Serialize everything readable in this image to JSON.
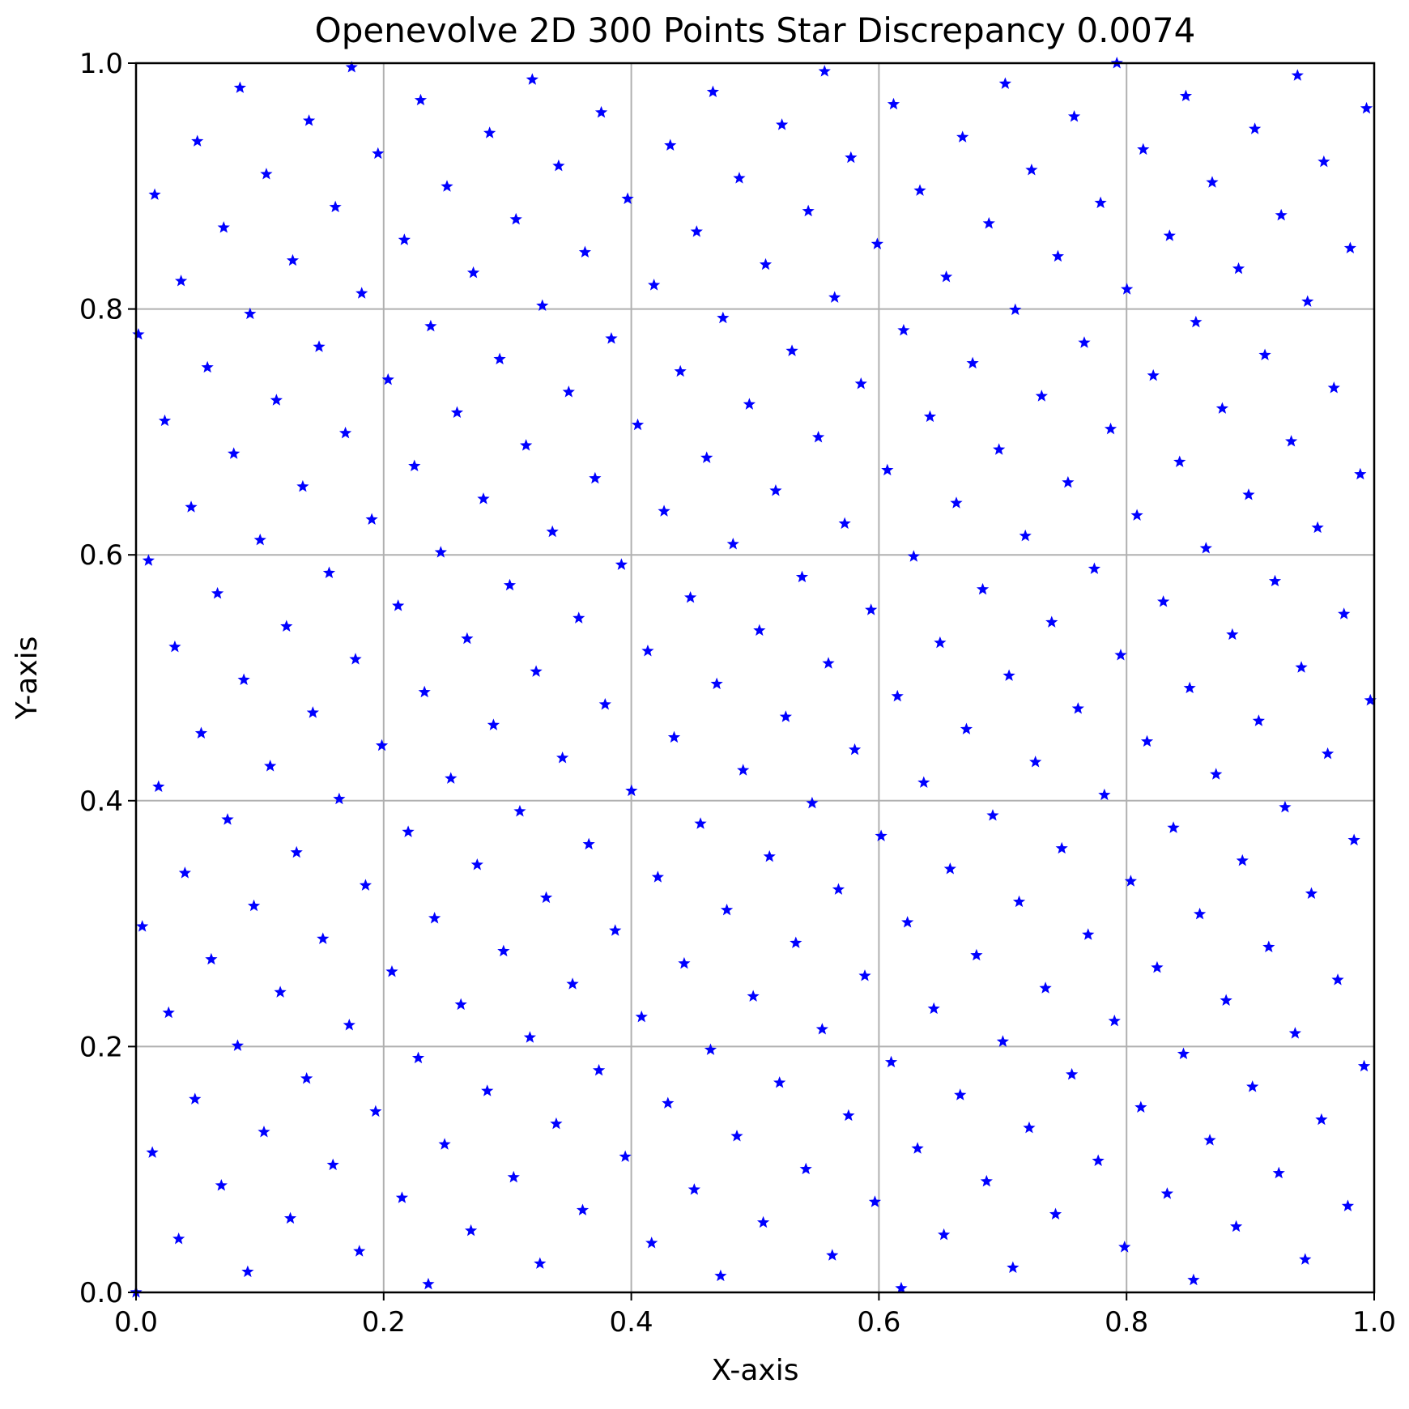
{
  "chart_data": {
    "type": "scatter",
    "title": "Openevolve 2D 300 Points Star Discrepancy 0.0074",
    "xlabel": "X-axis",
    "ylabel": "Y-axis",
    "xlim": [
      0.0,
      1.0
    ],
    "ylim": [
      0.0,
      1.0
    ],
    "xticks": [
      "0.0",
      "0.2",
      "0.4",
      "0.6",
      "0.8",
      "1.0"
    ],
    "yticks": [
      "0.0",
      "0.2",
      "0.4",
      "0.6",
      "0.8",
      "1.0"
    ],
    "xtick_values": [
      0.0,
      0.2,
      0.4,
      0.6,
      0.8,
      1.0
    ],
    "ytick_values": [
      0.0,
      0.2,
      0.4,
      0.6,
      0.8,
      1.0
    ],
    "grid": true,
    "marker": "star",
    "marker_color": "#0000ff",
    "grid_color": "#b0b0b0",
    "point_count": 300,
    "generator": {
      "alpha": 0.618034,
      "beta": 0.0
    }
  }
}
